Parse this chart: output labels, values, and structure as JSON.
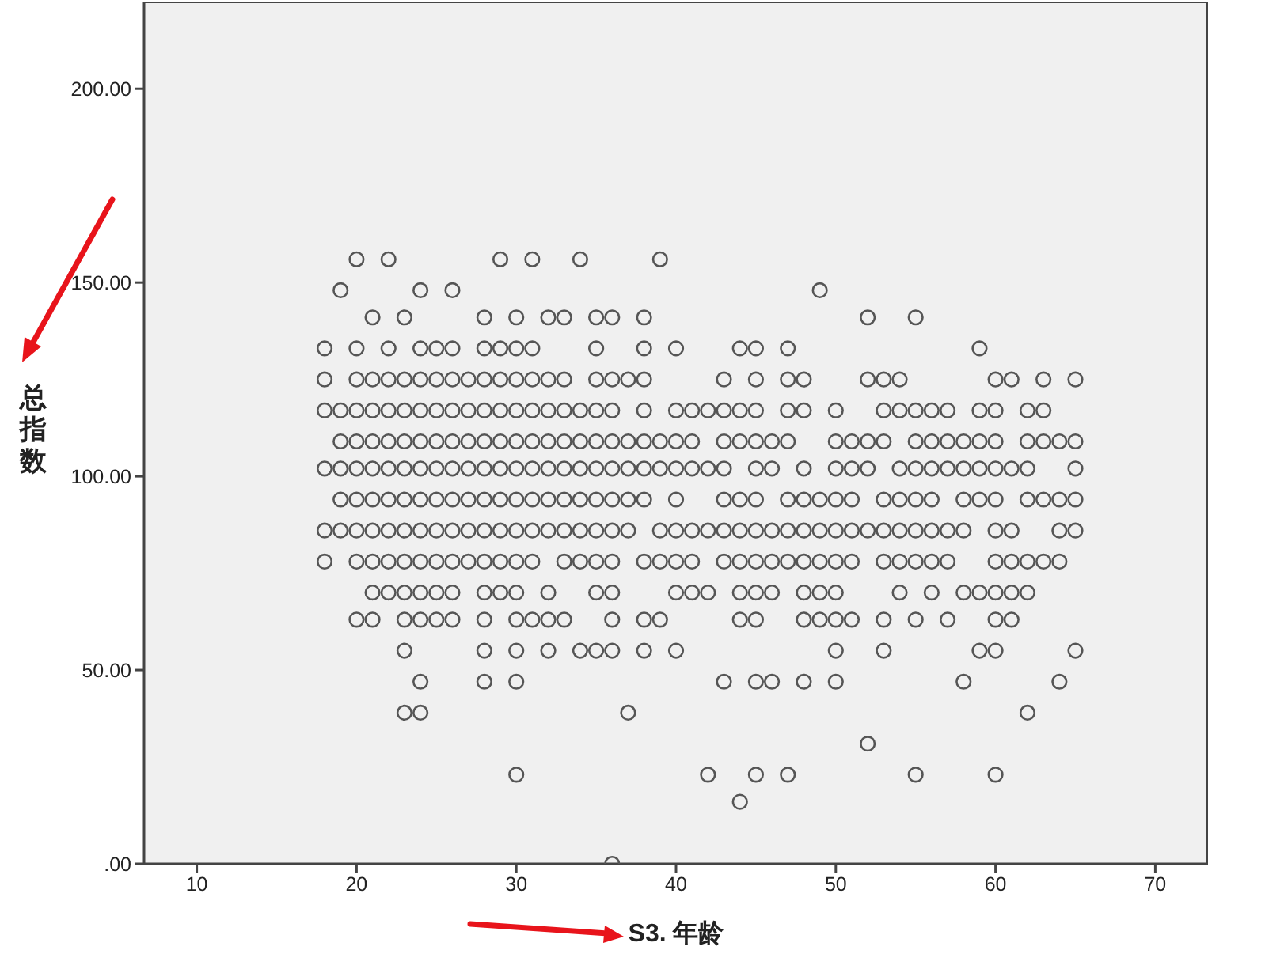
{
  "chart_data": {
    "type": "scatter",
    "xlabel": "S3. 年龄",
    "ylabel": "总指数",
    "color": "#555555",
    "marker": "circle",
    "xlim": [
      6.7,
      73.3
    ],
    "xticks": [
      10,
      20,
      30,
      40,
      50,
      60,
      70
    ],
    "ylim": [
      0,
      222.5
    ],
    "yticks": [
      {
        "value": 0,
        "label": ".00"
      },
      {
        "value": 50,
        "label": "50.00"
      },
      {
        "value": 100,
        "label": "100.00"
      },
      {
        "value": 150,
        "label": "150.00"
      },
      {
        "value": 200,
        "label": "200.00"
      }
    ],
    "x": [
      20,
      22,
      29,
      31,
      34,
      39,
      19,
      24,
      26,
      49,
      21,
      23,
      28,
      30,
      32,
      33,
      35,
      36,
      38,
      52,
      55,
      18,
      20,
      22,
      24,
      25,
      26,
      28,
      29,
      30,
      31,
      35,
      38,
      40,
      44,
      45,
      47,
      59,
      18,
      20,
      21,
      22,
      23,
      24,
      25,
      26,
      27,
      28,
      29,
      30,
      31,
      32,
      33,
      35,
      36,
      37,
      38,
      43,
      45,
      47,
      48,
      52,
      53,
      54,
      60,
      61,
      63,
      65,
      18,
      19,
      20,
      21,
      22,
      23,
      24,
      25,
      26,
      27,
      28,
      29,
      30,
      31,
      32,
      33,
      34,
      35,
      36,
      38,
      40,
      41,
      42,
      43,
      44,
      45,
      47,
      48,
      50,
      53,
      54,
      55,
      56,
      57,
      59,
      60,
      62,
      63,
      19,
      20,
      21,
      22,
      23,
      24,
      25,
      26,
      27,
      28,
      29,
      30,
      31,
      32,
      33,
      34,
      35,
      36,
      37,
      38,
      39,
      40,
      41,
      43,
      44,
      45,
      46,
      47,
      50,
      51,
      52,
      53,
      55,
      56,
      57,
      58,
      59,
      60,
      62,
      63,
      64,
      65,
      18,
      19,
      20,
      21,
      22,
      23,
      24,
      25,
      26,
      27,
      28,
      29,
      30,
      31,
      32,
      33,
      34,
      35,
      36,
      37,
      38,
      39,
      40,
      41,
      42,
      43,
      45,
      46,
      48,
      50,
      51,
      52,
      54,
      55,
      56,
      57,
      58,
      59,
      60,
      61,
      62,
      65,
      19,
      20,
      21,
      22,
      23,
      24,
      25,
      26,
      27,
      28,
      29,
      30,
      31,
      32,
      33,
      34,
      35,
      36,
      37,
      38,
      40,
      43,
      44,
      45,
      47,
      48,
      49,
      50,
      51,
      53,
      54,
      55,
      56,
      58,
      59,
      60,
      62,
      63,
      64,
      65,
      18,
      19,
      20,
      21,
      22,
      23,
      24,
      25,
      26,
      27,
      28,
      29,
      30,
      31,
      32,
      33,
      34,
      35,
      36,
      37,
      39,
      40,
      41,
      42,
      43,
      44,
      45,
      46,
      47,
      48,
      49,
      50,
      51,
      52,
      53,
      54,
      55,
      56,
      57,
      58,
      60,
      61,
      64,
      65,
      18,
      20,
      21,
      22,
      23,
      24,
      25,
      26,
      27,
      28,
      29,
      30,
      31,
      33,
      34,
      35,
      36,
      38,
      39,
      40,
      41,
      43,
      44,
      45,
      46,
      47,
      48,
      49,
      50,
      51,
      53,
      54,
      55,
      56,
      57,
      60,
      61,
      62,
      63,
      64,
      21,
      22,
      23,
      24,
      25,
      26,
      28,
      29,
      30,
      32,
      35,
      36,
      40,
      41,
      42,
      44,
      45,
      46,
      48,
      49,
      50,
      54,
      56,
      58,
      59,
      60,
      61,
      62,
      20,
      21,
      23,
      24,
      25,
      26,
      28,
      30,
      31,
      32,
      33,
      36,
      38,
      39,
      44,
      45,
      48,
      49,
      50,
      51,
      53,
      55,
      57,
      60,
      61,
      23,
      28,
      30,
      32,
      34,
      35,
      36,
      38,
      40,
      50,
      53,
      59,
      60,
      65,
      24,
      28,
      30,
      43,
      45,
      46,
      48,
      50,
      58,
      64,
      23,
      24,
      37,
      62,
      52,
      30,
      42,
      45,
      47,
      55,
      60,
      44,
      36
    ],
    "values": [
      156,
      156,
      156,
      156,
      156,
      156,
      148,
      148,
      148,
      148,
      141,
      141,
      141,
      141,
      141,
      141,
      141,
      141,
      141,
      141,
      141,
      133,
      133,
      133,
      133,
      133,
      133,
      133,
      133,
      133,
      133,
      133,
      133,
      133,
      133,
      133,
      133,
      133,
      125,
      125,
      125,
      125,
      125,
      125,
      125,
      125,
      125,
      125,
      125,
      125,
      125,
      125,
      125,
      125,
      125,
      125,
      125,
      125,
      125,
      125,
      125,
      125,
      125,
      125,
      125,
      125,
      125,
      125,
      117,
      117,
      117,
      117,
      117,
      117,
      117,
      117,
      117,
      117,
      117,
      117,
      117,
      117,
      117,
      117,
      117,
      117,
      117,
      117,
      117,
      117,
      117,
      117,
      117,
      117,
      117,
      117,
      117,
      117,
      117,
      117,
      117,
      117,
      117,
      117,
      117,
      117,
      109,
      109,
      109,
      109,
      109,
      109,
      109,
      109,
      109,
      109,
      109,
      109,
      109,
      109,
      109,
      109,
      109,
      109,
      109,
      109,
      109,
      109,
      109,
      109,
      109,
      109,
      109,
      109,
      109,
      109,
      109,
      109,
      109,
      109,
      109,
      109,
      109,
      109,
      109,
      109,
      109,
      109,
      102,
      102,
      102,
      102,
      102,
      102,
      102,
      102,
      102,
      102,
      102,
      102,
      102,
      102,
      102,
      102,
      102,
      102,
      102,
      102,
      102,
      102,
      102,
      102,
      102,
      102,
      102,
      102,
      102,
      102,
      102,
      102,
      102,
      102,
      102,
      102,
      102,
      102,
      102,
      102,
      102,
      102,
      94,
      94,
      94,
      94,
      94,
      94,
      94,
      94,
      94,
      94,
      94,
      94,
      94,
      94,
      94,
      94,
      94,
      94,
      94,
      94,
      94,
      94,
      94,
      94,
      94,
      94,
      94,
      94,
      94,
      94,
      94,
      94,
      94,
      94,
      94,
      94,
      94,
      94,
      94,
      94,
      86,
      86,
      86,
      86,
      86,
      86,
      86,
      86,
      86,
      86,
      86,
      86,
      86,
      86,
      86,
      86,
      86,
      86,
      86,
      86,
      86,
      86,
      86,
      86,
      86,
      86,
      86,
      86,
      86,
      86,
      86,
      86,
      86,
      86,
      86,
      86,
      86,
      86,
      86,
      86,
      86,
      86,
      86,
      86,
      78,
      78,
      78,
      78,
      78,
      78,
      78,
      78,
      78,
      78,
      78,
      78,
      78,
      78,
      78,
      78,
      78,
      78,
      78,
      78,
      78,
      78,
      78,
      78,
      78,
      78,
      78,
      78,
      78,
      78,
      78,
      78,
      78,
      78,
      78,
      78,
      78,
      78,
      78,
      78,
      70,
      70,
      70,
      70,
      70,
      70,
      70,
      70,
      70,
      70,
      70,
      70,
      70,
      70,
      70,
      70,
      70,
      70,
      70,
      70,
      70,
      70,
      70,
      70,
      70,
      70,
      70,
      70,
      63,
      63,
      63,
      63,
      63,
      63,
      63,
      63,
      63,
      63,
      63,
      63,
      63,
      63,
      63,
      63,
      63,
      63,
      63,
      63,
      63,
      63,
      63,
      63,
      63,
      55,
      55,
      55,
      55,
      55,
      55,
      55,
      55,
      55,
      55,
      55,
      55,
      55,
      55,
      47,
      47,
      47,
      47,
      47,
      47,
      47,
      47,
      47,
      47,
      39,
      39,
      39,
      39,
      31,
      23,
      23,
      23,
      23,
      23,
      23,
      16,
      0
    ]
  }
}
